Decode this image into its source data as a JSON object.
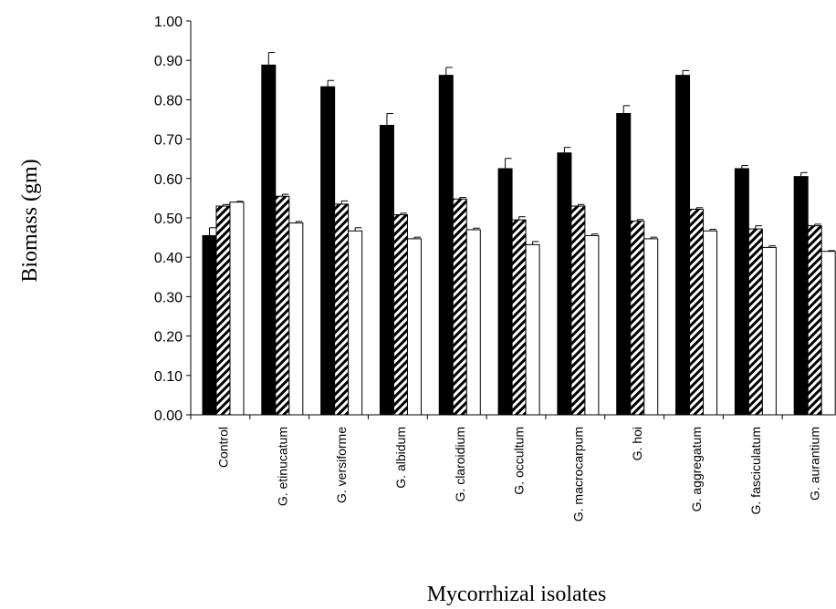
{
  "chart_data": {
    "type": "bar",
    "title": "",
    "xlabel": "Mycorrhizal isolates",
    "ylabel": "Biomass (gm)",
    "ylim": [
      0,
      1.0
    ],
    "ytick_step": 0.1,
    "ytick_labels": [
      "0.00",
      "0.10",
      "0.20",
      "0.30",
      "0.40",
      "0.50",
      "0.60",
      "0.70",
      "0.80",
      "0.90",
      "1.00"
    ],
    "grid": false,
    "legend": "none",
    "categories": [
      "Control",
      "G. etinucatum",
      "G. versiforme",
      "G. albidum",
      "G. claroidium",
      "G. occultum",
      "G. macrocarpum",
      "G. hoi",
      "G. aggregatum",
      "G. fasciculatum",
      "G. aurantium"
    ],
    "series": [
      {
        "fill": "solid",
        "color": "#000000",
        "values": [
          0.455,
          0.888,
          0.833,
          0.735,
          0.862,
          0.625,
          0.665,
          0.765,
          0.862,
          0.625,
          0.605
        ],
        "errors": [
          0.02,
          0.032,
          0.016,
          0.03,
          0.02,
          0.026,
          0.014,
          0.02,
          0.012,
          0.008,
          0.01
        ]
      },
      {
        "fill": "diagonal-hatch",
        "color": "#000000",
        "values": [
          0.53,
          0.555,
          0.535,
          0.508,
          0.548,
          0.495,
          0.53,
          0.492,
          0.522,
          0.472,
          0.48
        ],
        "errors": [
          0.004,
          0.005,
          0.008,
          0.004,
          0.004,
          0.008,
          0.004,
          0.004,
          0.004,
          0.008,
          0.004
        ]
      },
      {
        "fill": "open",
        "color": "#ffffff",
        "values": [
          0.54,
          0.487,
          0.467,
          0.447,
          0.47,
          0.432,
          0.455,
          0.447,
          0.467,
          0.425,
          0.415
        ],
        "errors": [
          0.002,
          0.004,
          0.008,
          0.004,
          0.004,
          0.008,
          0.004,
          0.004,
          0.004,
          0.004,
          0.002
        ]
      }
    ]
  }
}
